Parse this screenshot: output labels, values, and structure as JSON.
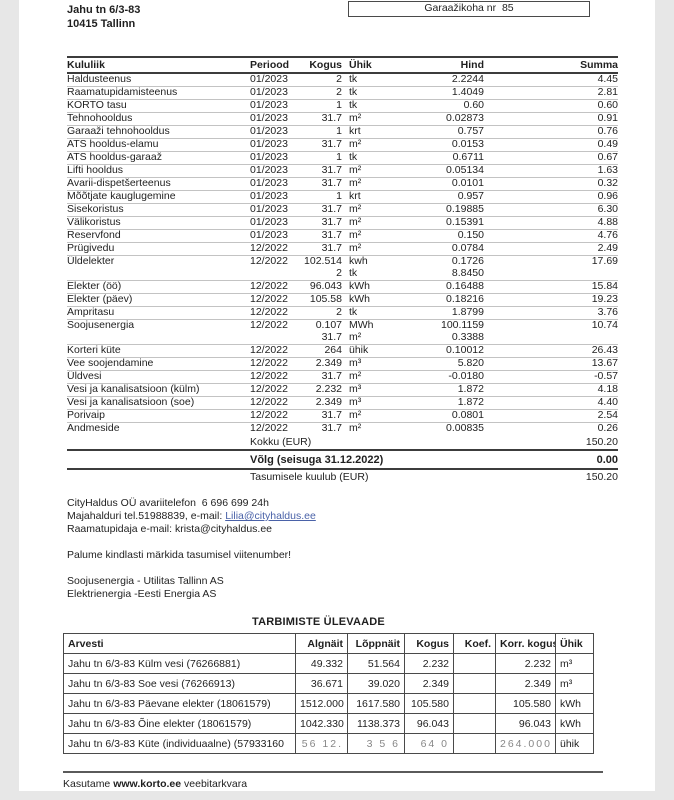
{
  "header": {
    "address_line1": "Jahu tn 6/3-83",
    "address_line2": "10415 Tallinn",
    "garage_box_label": "Garaažikoha nr  85"
  },
  "cost_table": {
    "headers": [
      "Kululiik",
      "Periood",
      "Kogus",
      "Ühik",
      "Hind",
      "Summa"
    ],
    "rows": [
      {
        "name": "Haldusteenus",
        "period": "01/2023",
        "qty": "2",
        "unit": "tk",
        "price": "2.2244",
        "sum": "4.45",
        "cls": ""
      },
      {
        "name": "Raamatupidamisteenus",
        "period": "01/2023",
        "qty": "2",
        "unit": "tk",
        "price": "1.4049",
        "sum": "2.81",
        "cls": ""
      },
      {
        "name": "KORTO tasu",
        "period": "01/2023",
        "qty": "1",
        "unit": "tk",
        "price": "0.60",
        "sum": "0.60",
        "cls": ""
      },
      {
        "name": "Tehnohooldus",
        "period": "01/2023",
        "qty": "31.7",
        "unit": "m²",
        "price": "0.02873",
        "sum": "0.91",
        "cls": ""
      },
      {
        "name": "Garaaži tehnohooldus",
        "period": "01/2023",
        "qty": "1",
        "unit": "krt",
        "price": "0.757",
        "sum": "0.76",
        "cls": ""
      },
      {
        "name": "ATS hooldus-elamu",
        "period": "01/2023",
        "qty": "31.7",
        "unit": "m²",
        "price": "0.0153",
        "sum": "0.49",
        "cls": ""
      },
      {
        "name": "ATS hooldus-garaaž",
        "period": "01/2023",
        "qty": "1",
        "unit": "tk",
        "price": "0.6711",
        "sum": "0.67",
        "cls": ""
      },
      {
        "name": "Lifti hooldus",
        "period": "01/2023",
        "qty": "31.7",
        "unit": "m²",
        "price": "0.05134",
        "sum": "1.63",
        "cls": ""
      },
      {
        "name": "Avarii-dispetšerteenus",
        "period": "01/2023",
        "qty": "31.7",
        "unit": "m²",
        "price": "0.0101",
        "sum": "0.32",
        "cls": ""
      },
      {
        "name": "Mõõtjate kauglugemine",
        "period": "01/2023",
        "qty": "1",
        "unit": "krt",
        "price": "0.957",
        "sum": "0.96",
        "cls": ""
      },
      {
        "name": "Sisekoristus",
        "period": "01/2023",
        "qty": "31.7",
        "unit": "m²",
        "price": "0.19885",
        "sum": "6.30",
        "cls": ""
      },
      {
        "name": "Välikoristus",
        "period": "01/2023",
        "qty": "31.7",
        "unit": "m²",
        "price": "0.15391",
        "sum": "4.88",
        "cls": ""
      },
      {
        "name": "Reservfond",
        "period": "01/2023",
        "qty": "31.7",
        "unit": "m²",
        "price": "0.150",
        "sum": "4.76",
        "cls": ""
      },
      {
        "name": "Prügivedu",
        "period": "12/2022",
        "qty": "31.7",
        "unit": "m²",
        "price": "0.0784",
        "sum": "2.49",
        "cls": ""
      },
      {
        "name": "Üldelekter",
        "period": "12/2022",
        "qty": "102.514",
        "unit": "kwh",
        "price": "0.1726",
        "sum": "17.69",
        "cls": "nb"
      },
      {
        "name": "",
        "period": "",
        "qty": "2",
        "unit": "tk",
        "price": "8.8450",
        "sum": "",
        "cls": ""
      },
      {
        "name": "Elekter (öö)",
        "period": "12/2022",
        "qty": "96.043",
        "unit": "kWh",
        "price": "0.16488",
        "sum": "15.84",
        "cls": ""
      },
      {
        "name": "Elekter (päev)",
        "period": "12/2022",
        "qty": "105.58",
        "unit": "kWh",
        "price": "0.18216",
        "sum": "19.23",
        "cls": ""
      },
      {
        "name": "Ampritasu",
        "period": "12/2022",
        "qty": "2",
        "unit": "tk",
        "price": "1.8799",
        "sum": "3.76",
        "cls": ""
      },
      {
        "name": "Soojusenergia",
        "period": "12/2022",
        "qty": "0.107",
        "unit": "MWh",
        "price": "100.1159",
        "sum": "10.74",
        "cls": "nb"
      },
      {
        "name": "",
        "period": "",
        "qty": "31.7",
        "unit": "m²",
        "price": "0.3388",
        "sum": "",
        "cls": ""
      },
      {
        "name": "Korteri küte",
        "period": "12/2022",
        "qty": "264",
        "unit": "ühik",
        "price": "0.10012",
        "sum": "26.43",
        "cls": ""
      },
      {
        "name": "Vee soojendamine",
        "period": "12/2022",
        "qty": "2.349",
        "unit": "m³",
        "price": "5.820",
        "sum": "13.67",
        "cls": ""
      },
      {
        "name": "Üldvesi",
        "period": "12/2022",
        "qty": "31.7",
        "unit": "m²",
        "price": "-0.0180",
        "sum": "-0.57",
        "cls": ""
      },
      {
        "name": "Vesi ja kanalisatsioon (külm)",
        "period": "12/2022",
        "qty": "2.232",
        "unit": "m³",
        "price": "1.872",
        "sum": "4.18",
        "cls": ""
      },
      {
        "name": "Vesi ja kanalisatsioon (soe)",
        "period": "12/2022",
        "qty": "2.349",
        "unit": "m³",
        "price": "1.872",
        "sum": "4.40",
        "cls": ""
      },
      {
        "name": "Porivaip",
        "period": "12/2022",
        "qty": "31.7",
        "unit": "m²",
        "price": "0.0801",
        "sum": "2.54",
        "cls": ""
      },
      {
        "name": "Andmeside",
        "period": "12/2022",
        "qty": "31.7",
        "unit": "m²",
        "price": "0.00835",
        "sum": "0.26",
        "cls": "nb"
      }
    ],
    "totals": [
      {
        "label": "Kokku (EUR)",
        "value": "150.20",
        "cls": ""
      },
      {
        "label": "Võlg (seisuga 31.12.2022)",
        "value": "0.00",
        "cls": ""
      },
      {
        "label": "Tasumisele kuulub (EUR)",
        "value": "150.20",
        "cls": ""
      }
    ]
  },
  "contact": {
    "line1": "CityHaldus OÜ avariitelefon  6 696 699 24h",
    "line2_prefix": "Majahalduri tel.51988839, e-mail: ",
    "line2_link": "Lilia@cityhaldus.ee",
    "line3": "Raamatupidaja e-mail: krista@cityhaldus.ee",
    "note": "Palume kindlasti märkida tasumisel viitenumber!",
    "supplier1": "Soojusenergia - Utilitas Tallinn AS",
    "supplier2": "Elektrienergia -Eesti Energia AS"
  },
  "consumption": {
    "title": "TARBIMISTE ÜLEVAADE",
    "headers": [
      "Arvesti",
      "Algnäit",
      "Lõppnäit",
      "Kogus",
      "Koef.",
      "Korr. kogus",
      "Ühik"
    ],
    "rows": [
      {
        "meter": "Jahu tn 6/3-83 Külm vesi (76266881)",
        "start": "49.332",
        "end": "51.564",
        "qty": "2.232",
        "koef": "",
        "corr": "2.232",
        "unit": "m³",
        "cls": ""
      },
      {
        "meter": "Jahu tn 6/3-83 Soe vesi (76266913)",
        "start": "36.671",
        "end": "39.020",
        "qty": "2.349",
        "koef": "",
        "corr": "2.349",
        "unit": "m³",
        "cls": ""
      },
      {
        "meter": "Jahu tn 6/3-83 Päevane elekter (18061579)",
        "start": "1512.000",
        "end": "1617.580",
        "qty": "105.580",
        "koef": "",
        "corr": "105.580",
        "unit": "kWh",
        "cls": ""
      },
      {
        "meter": "Jahu tn 6/3-83 Õine elekter (18061579)",
        "start": "1042.330",
        "end": "1138.373",
        "qty": "96.043",
        "koef": "",
        "corr": "96.043",
        "unit": "kWh",
        "cls": ""
      },
      {
        "meter": "Jahu tn 6/3-83 Küte (individuaalne) (57933160",
        "start": "56 12.",
        "end": "3 5 6",
        "qty": "64 0",
        "koef": "",
        "corr": "264.000",
        "unit": "ühik",
        "cls": "garbled"
      }
    ]
  },
  "footer": {
    "prefix": "Kasutame ",
    "site": "www.korto.ee",
    "suffix": " veebitarkvara"
  },
  "colors": {
    "page_bg": "#ffffff",
    "scan_bg": "#e7e7e7",
    "link": "#4a62a8",
    "rule_dark": "#3c3c3c",
    "rule_light": "#c3c3c3"
  }
}
